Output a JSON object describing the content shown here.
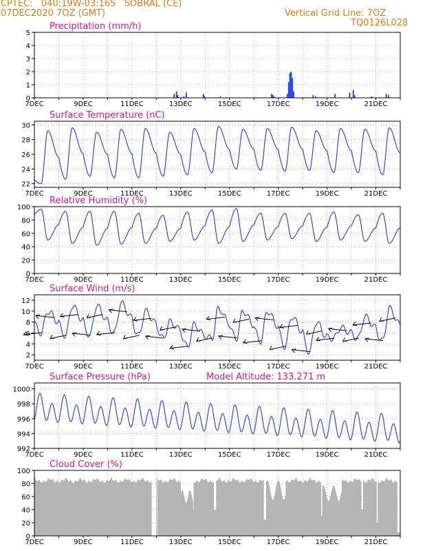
{
  "header": {
    "line1": "CPTEC:   040:19W-03:16S   SOBRAL (CE)",
    "line2": "07DEC2020 7OZ (GMT)",
    "grid_line": "Vertical Grid Line: 7OZ",
    "run_id": "TQ0126L028",
    "model_altitude": "Model Altitude: 133.271  m"
  },
  "colors": {
    "title": "#e0148c",
    "header": "#e07a18",
    "line": "#2f47e8",
    "cloud": "#b4b4b4"
  },
  "chart_data": [
    {
      "type": "bar",
      "title": "Precipitation (mm/h)",
      "ylim": [
        0,
        5
      ],
      "yticks": [
        0,
        1,
        2,
        3,
        4,
        5
      ],
      "xticks": [
        "7DEC",
        "9DEC",
        "11DEC",
        "13DEC",
        "15DEC",
        "17DEC",
        "19DEC",
        "21DEC"
      ],
      "x": [
        0,
        5.7,
        5.8,
        5.85,
        6.1,
        6.2,
        6.9,
        6.95,
        7.6,
        9.7,
        9.75,
        9.8,
        10.35,
        10.4,
        10.45,
        10.5,
        10.55,
        10.6,
        11.4,
        11.5,
        12.3,
        12.9,
        13.05,
        13.1,
        13.8,
        14.4,
        14.5
      ],
      "values": [
        0.05,
        0.3,
        0.5,
        0.2,
        0.1,
        0.4,
        0.3,
        0.1,
        0.1,
        0.3,
        0.2,
        0.1,
        0.3,
        1.2,
        1.9,
        2.0,
        1.5,
        0.5,
        0.2,
        0.1,
        0.3,
        0.4,
        0.6,
        0.2,
        0.1,
        0.3,
        0.2
      ]
    },
    {
      "type": "line",
      "title": "Surface Temperature (nC)",
      "ylim": [
        21.5,
        30.5
      ],
      "yticks": [
        22,
        24,
        26,
        28,
        30
      ],
      "xticks": [
        "7DEC",
        "9DEC",
        "11DEC",
        "13DEC",
        "15DEC",
        "17DEC",
        "19DEC",
        "21DEC"
      ],
      "daily_max": [
        29.2,
        29.6,
        29.0,
        29.4,
        29.5,
        29.0,
        29.5,
        29.8,
        29.4,
        29.5,
        29.7,
        29.2,
        29.5,
        29.4,
        29.6
      ],
      "daily_min": [
        22.0,
        22.6,
        23.0,
        22.8,
        22.8,
        23.0,
        23.2,
        23.5,
        24.0,
        23.8,
        23.7,
        23.8,
        23.5,
        23.5,
        23.2
      ],
      "x_start": 0,
      "x_end": 15,
      "y_start": 22.5,
      "y_end": 26.2
    },
    {
      "type": "line",
      "title": "Relative Humidity (%)",
      "ylim": [
        0,
        100
      ],
      "yticks": [
        0,
        20,
        40,
        60,
        80,
        100
      ],
      "xticks": [
        "7DEC",
        "9DEC",
        "11DEC",
        "13DEC",
        "15DEC",
        "17DEC",
        "19DEC",
        "21DEC"
      ],
      "daily_max": [
        96,
        93,
        93,
        93,
        90,
        87,
        92,
        95,
        97,
        90,
        90,
        90,
        92,
        88,
        90
      ],
      "daily_min": [
        50,
        45,
        42,
        44,
        45,
        48,
        50,
        45,
        48,
        50,
        52,
        48,
        50,
        48,
        45
      ],
      "x_start": 0,
      "x_end": 15,
      "y_start": 88,
      "y_end": 68
    },
    {
      "type": "line",
      "title": "Surface Wind (m/s)",
      "ylim": [
        1,
        13
      ],
      "yticks": [
        2,
        4,
        6,
        8,
        10,
        12
      ],
      "xticks": [
        "7DEC",
        "9DEC",
        "11DEC",
        "13DEC",
        "15DEC",
        "17DEC",
        "19DEC",
        "21DEC"
      ],
      "daily_max": [
        10,
        11,
        11,
        11.5,
        10,
        8,
        7.5,
        10.5,
        10,
        10,
        9,
        8,
        7,
        9,
        10.5
      ],
      "daily_min": [
        6,
        5.5,
        5.5,
        6,
        5.5,
        5,
        3.5,
        5,
        5,
        4.5,
        3.5,
        2.5,
        5,
        5,
        4.5
      ],
      "x_start": 0,
      "x_end": 15,
      "y_start": 8,
      "y_end": 7.5,
      "arrow_length": 14
    },
    {
      "type": "line",
      "title": "Surface Pressure (hPa)",
      "ylim": [
        992,
        1000.8
      ],
      "yticks": [
        992,
        994,
        996,
        998,
        1000
      ],
      "xticks": [
        "7DEC",
        "9DEC",
        "11DEC",
        "13DEC",
        "15DEC",
        "17DEC",
        "19DEC",
        "21DEC"
      ],
      "trend_start": 997.3,
      "trend_end": 994.4,
      "amp1": 1.5,
      "amp2": 0.65,
      "x_start": 0,
      "x_end": 15
    },
    {
      "type": "bar",
      "title": "Cloud Cover (%)",
      "ylim": [
        0,
        100
      ],
      "yticks": [
        0,
        20,
        40,
        60,
        80,
        100
      ],
      "xticks": [
        "7DEC",
        "9DEC",
        "11DEC",
        "13DEC",
        "15DEC",
        "17DEC",
        "19DEC",
        "21DEC"
      ],
      "x_start": 0,
      "x_end": 15,
      "base_level": 90,
      "gaps": [
        {
          "from": 4.8,
          "to": 5.0,
          "value": 0
        },
        {
          "from": 5.02,
          "to": 5.05,
          "value": 0
        },
        {
          "from": 6.05,
          "to": 6.1,
          "value": 25
        },
        {
          "from": 6.45,
          "to": 6.52,
          "value": 40
        },
        {
          "from": 7.35,
          "to": 7.45,
          "value": 40
        },
        {
          "from": 9.4,
          "to": 9.62,
          "value": 25
        },
        {
          "from": 10.08,
          "to": 10.14,
          "value": 35
        },
        {
          "from": 11.75,
          "to": 11.83,
          "value": 30
        },
        {
          "from": 13.4,
          "to": 13.47,
          "value": 40
        },
        {
          "from": 14.02,
          "to": 14.06,
          "value": 20
        },
        {
          "from": 14.86,
          "to": 15.0,
          "value": 5
        }
      ]
    }
  ]
}
